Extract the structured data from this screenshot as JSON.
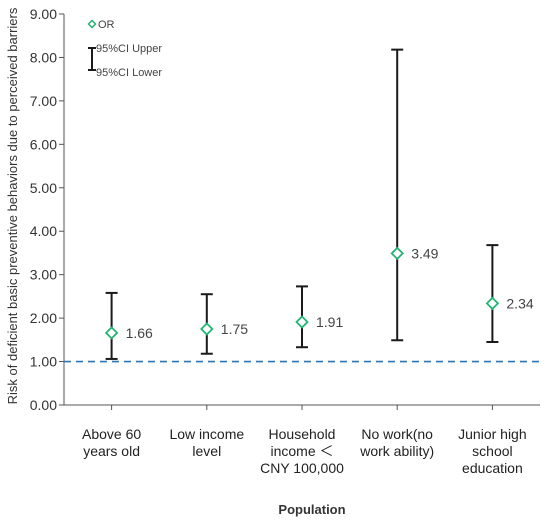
{
  "chart_data": {
    "type": "scatter",
    "title": "",
    "xlabel": "Population",
    "ylabel": "Risk of deficient basic preventive behaviors due to perceived barriers",
    "ylim": [
      0,
      9
    ],
    "y_ticks": [
      "0.00",
      "1.00",
      "2.00",
      "3.00",
      "4.00",
      "5.00",
      "6.00",
      "7.00",
      "8.00",
      "9.00"
    ],
    "categories": [
      [
        "Above 60",
        "years old"
      ],
      [
        "Low income",
        "level"
      ],
      [
        "Household",
        "income ＜",
        "CNY 100,000"
      ],
      [
        "No work(no",
        "work ability)"
      ],
      [
        "Junior high",
        "school",
        "education"
      ]
    ],
    "series": [
      {
        "name": "OR",
        "values": [
          1.66,
          1.75,
          1.91,
          3.49,
          2.34
        ]
      },
      {
        "name": "95%CI Upper",
        "values": [
          2.58,
          2.55,
          2.73,
          8.18,
          3.68
        ]
      },
      {
        "name": "95%CI Lower",
        "values": [
          1.06,
          1.18,
          1.33,
          1.49,
          1.45
        ]
      }
    ],
    "data_labels": [
      "1.66",
      "1.75",
      "1.91",
      "3.49",
      "2.34"
    ],
    "reference_line": {
      "y": 1.0,
      "style": "dashed"
    },
    "grid": false,
    "legend": {
      "position": "top-left",
      "items": [
        {
          "label": "OR",
          "marker": "diamond"
        },
        {
          "label": "95%CI Upper",
          "marker": "error-bar"
        },
        {
          "label": "95%CI Lower",
          "marker": "error-bar"
        }
      ]
    },
    "colors": {
      "or_marker": "#22b573",
      "error_bar": "#1a1a1a",
      "reference_line": "#2e75b6",
      "axis": "#555555"
    }
  }
}
